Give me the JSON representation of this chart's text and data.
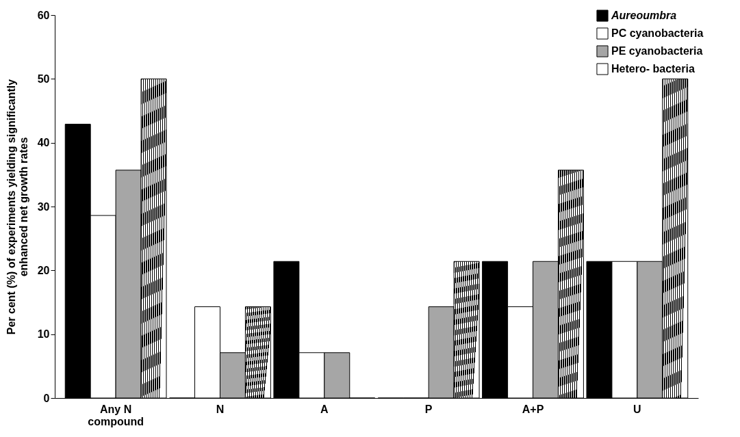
{
  "chart_data": {
    "type": "bar",
    "ylabel": "Per cent (%) of experiments yielding significantly enhanced net growth rates",
    "categories": [
      "Any N compound",
      "N",
      "A",
      "P",
      "A+P",
      "U"
    ],
    "series": [
      {
        "name": "Aureoumbra",
        "color": "#000000",
        "values": [
          42.9,
          0,
          21.4,
          0,
          21.4,
          21.4
        ]
      },
      {
        "name": "PC cyanobacteria",
        "color": "#ffffff",
        "values": [
          28.6,
          14.3,
          7.1,
          0,
          14.3,
          21.4
        ]
      },
      {
        "name": "PE cyanobacteria",
        "color": "#a6a6a6",
        "values": [
          35.7,
          7.1,
          7.1,
          14.3,
          21.4,
          21.4
        ]
      },
      {
        "name": "Hetero- bacteria",
        "color": "#000000",
        "values": [
          50,
          14.3,
          0,
          21.4,
          35.7,
          50
        ]
      }
    ],
    "ylim": [
      0,
      60
    ],
    "yticks": [
      0,
      10,
      20,
      30,
      40,
      50,
      60
    ],
    "grid": false,
    "legend": "top right"
  }
}
